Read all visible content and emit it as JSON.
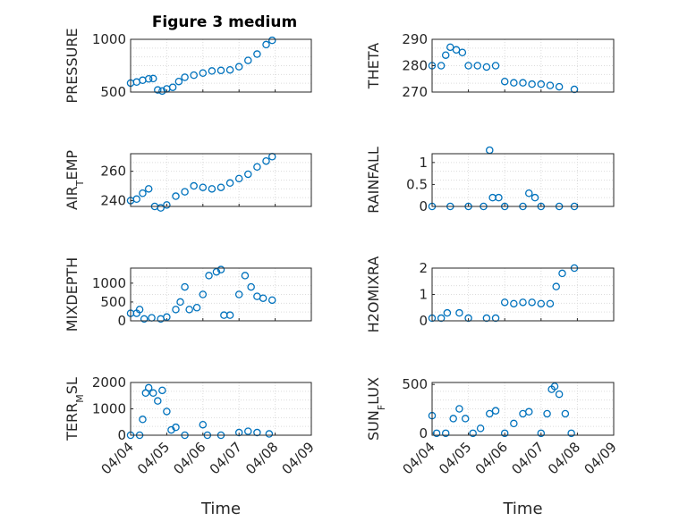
{
  "figure": {
    "title": "Figure 3 medium"
  },
  "chart_data": [
    {
      "type": "scatter",
      "ylabel": "PRESSURE",
      "title": "Figure 3 medium",
      "ylim": [
        500,
        1000
      ],
      "yticks": [
        500,
        1000
      ],
      "xlabel": "",
      "x_ticklabels": [],
      "points": [
        [
          "04/04 00:00",
          585
        ],
        [
          "04/04 04:00",
          595
        ],
        [
          "04/04 08:00",
          612
        ],
        [
          "04/04 12:00",
          625
        ],
        [
          "04/04 15:00",
          628
        ],
        [
          "04/04 18:00",
          520
        ],
        [
          "04/04 21:00",
          510
        ],
        [
          "04/05 00:00",
          530
        ],
        [
          "04/05 04:00",
          545
        ],
        [
          "04/05 08:00",
          600
        ],
        [
          "04/05 12:00",
          640
        ],
        [
          "04/05 18:00",
          660
        ],
        [
          "04/06 00:00",
          680
        ],
        [
          "04/06 06:00",
          700
        ],
        [
          "04/06 12:00",
          705
        ],
        [
          "04/06 18:00",
          710
        ],
        [
          "04/07 00:00",
          740
        ],
        [
          "04/07 06:00",
          800
        ],
        [
          "04/07 12:00",
          860
        ],
        [
          "04/07 18:00",
          950
        ],
        [
          "04/07 22:00",
          990
        ]
      ]
    },
    {
      "type": "scatter",
      "ylabel": "THETA",
      "ylim": [
        270,
        290
      ],
      "yticks": [
        270,
        280,
        290
      ],
      "xlabel": "",
      "x_ticklabels": [],
      "points": [
        [
          "04/04 00:00",
          280
        ],
        [
          "04/04 06:00",
          280
        ],
        [
          "04/04 09:00",
          284
        ],
        [
          "04/04 12:00",
          287
        ],
        [
          "04/04 16:00",
          286
        ],
        [
          "04/04 20:00",
          285
        ],
        [
          "04/05 00:00",
          280
        ],
        [
          "04/05 06:00",
          280
        ],
        [
          "04/05 12:00",
          279.5
        ],
        [
          "04/05 18:00",
          280
        ],
        [
          "04/06 00:00",
          274
        ],
        [
          "04/06 06:00",
          273.5
        ],
        [
          "04/06 12:00",
          273.5
        ],
        [
          "04/06 18:00",
          273
        ],
        [
          "04/07 00:00",
          273
        ],
        [
          "04/07 06:00",
          272.5
        ],
        [
          "04/07 12:00",
          272
        ],
        [
          "04/07 22:00",
          271
        ]
      ]
    },
    {
      "type": "scatter",
      "ylabel_main": "AIR",
      "ylabel_sub": "T",
      "ylabel_rest": "EMP",
      "ylim": [
        236,
        272
      ],
      "yticks": [
        240,
        260
      ],
      "xlabel": "",
      "x_ticklabels": [],
      "points": [
        [
          "04/04 00:00",
          240
        ],
        [
          "04/04 04:00",
          241
        ],
        [
          "04/04 08:00",
          245
        ],
        [
          "04/04 12:00",
          248
        ],
        [
          "04/04 16:00",
          236
        ],
        [
          "04/04 20:00",
          235
        ],
        [
          "04/05 00:00",
          237
        ],
        [
          "04/05 06:00",
          243
        ],
        [
          "04/05 12:00",
          246
        ],
        [
          "04/05 18:00",
          250
        ],
        [
          "04/06 00:00",
          249
        ],
        [
          "04/06 06:00",
          248
        ],
        [
          "04/06 12:00",
          249
        ],
        [
          "04/06 18:00",
          252
        ],
        [
          "04/07 00:00",
          255
        ],
        [
          "04/07 06:00",
          258
        ],
        [
          "04/07 12:00",
          263
        ],
        [
          "04/07 18:00",
          267
        ],
        [
          "04/07 22:00",
          270
        ]
      ]
    },
    {
      "type": "scatter",
      "ylabel": "RAINFALL",
      "ylim": [
        0,
        1.2
      ],
      "yticks": [
        0,
        0.5,
        1
      ],
      "xlabel": "",
      "x_ticklabels": [],
      "points": [
        [
          "04/04 00:00",
          0
        ],
        [
          "04/04 12:00",
          0
        ],
        [
          "04/05 00:00",
          0
        ],
        [
          "04/05 10:00",
          0
        ],
        [
          "04/05 14:00",
          1.28
        ],
        [
          "04/05 16:00",
          0.2
        ],
        [
          "04/05 20:00",
          0.2
        ],
        [
          "04/06 00:00",
          0
        ],
        [
          "04/06 12:00",
          0
        ],
        [
          "04/06 16:00",
          0.3
        ],
        [
          "04/06 20:00",
          0.2
        ],
        [
          "04/07 00:00",
          0
        ],
        [
          "04/07 12:00",
          0
        ],
        [
          "04/07 22:00",
          0
        ]
      ]
    },
    {
      "type": "scatter",
      "ylabel": "MIXDEPTH",
      "ylim": [
        0,
        1400
      ],
      "yticks": [
        0,
        500,
        1000
      ],
      "xlabel": "",
      "x_ticklabels": [],
      "points": [
        [
          "04/04 00:00",
          200
        ],
        [
          "04/04 04:00",
          200
        ],
        [
          "04/04 06:00",
          300
        ],
        [
          "04/04 09:00",
          50
        ],
        [
          "04/04 14:00",
          80
        ],
        [
          "04/04 20:00",
          50
        ],
        [
          "04/05 00:00",
          100
        ],
        [
          "04/05 06:00",
          300
        ],
        [
          "04/05 09:00",
          500
        ],
        [
          "04/05 12:00",
          900
        ],
        [
          "04/05 15:00",
          300
        ],
        [
          "04/05 20:00",
          350
        ],
        [
          "04/06 00:00",
          700
        ],
        [
          "04/06 04:00",
          1200
        ],
        [
          "04/06 09:00",
          1300
        ],
        [
          "04/06 12:00",
          1360
        ],
        [
          "04/06 14:00",
          150
        ],
        [
          "04/06 18:00",
          150
        ],
        [
          "04/07 00:00",
          700
        ],
        [
          "04/07 04:00",
          1200
        ],
        [
          "04/07 08:00",
          900
        ],
        [
          "04/07 12:00",
          650
        ],
        [
          "04/07 16:00",
          600
        ],
        [
          "04/07 22:00",
          550
        ]
      ]
    },
    {
      "type": "scatter",
      "ylabel": "H2OMIXRA",
      "ylim": [
        0,
        2
      ],
      "yticks": [
        0,
        1,
        2
      ],
      "xlabel": "",
      "x_ticklabels": [],
      "points": [
        [
          "04/04 00:00",
          0.1
        ],
        [
          "04/04 06:00",
          0.1
        ],
        [
          "04/04 10:00",
          0.3
        ],
        [
          "04/04 18:00",
          0.3
        ],
        [
          "04/05 00:00",
          0.1
        ],
        [
          "04/05 12:00",
          0.1
        ],
        [
          "04/05 18:00",
          0.1
        ],
        [
          "04/06 00:00",
          0.7
        ],
        [
          "04/06 06:00",
          0.65
        ],
        [
          "04/06 12:00",
          0.7
        ],
        [
          "04/06 18:00",
          0.7
        ],
        [
          "04/07 00:00",
          0.65
        ],
        [
          "04/07 06:00",
          0.65
        ],
        [
          "04/07 10:00",
          1.3
        ],
        [
          "04/07 14:00",
          1.8
        ],
        [
          "04/07 22:00",
          2.0
        ]
      ]
    },
    {
      "type": "scatter",
      "ylabel_main": "TERR",
      "ylabel_sub": "M",
      "ylabel_rest": "SL",
      "ylim": [
        0,
        2000
      ],
      "yticks": [
        0,
        1000,
        2000
      ],
      "xlabel": "Time",
      "x_ticklabels": [
        "04/04",
        "04/05",
        "04/06",
        "04/07",
        "04/08",
        "04/09"
      ],
      "points": [
        [
          "04/04 00:00",
          0
        ],
        [
          "04/04 06:00",
          0
        ],
        [
          "04/04 08:00",
          600
        ],
        [
          "04/04 10:00",
          1600
        ],
        [
          "04/04 12:00",
          1800
        ],
        [
          "04/04 15:00",
          1600
        ],
        [
          "04/04 18:00",
          1300
        ],
        [
          "04/04 21:00",
          1700
        ],
        [
          "04/05 00:00",
          900
        ],
        [
          "04/05 03:00",
          200
        ],
        [
          "04/05 06:00",
          300
        ],
        [
          "04/05 12:00",
          0
        ],
        [
          "04/06 00:00",
          400
        ],
        [
          "04/06 03:00",
          0
        ],
        [
          "04/06 12:00",
          0
        ],
        [
          "04/07 00:00",
          100
        ],
        [
          "04/07 06:00",
          150
        ],
        [
          "04/07 12:00",
          100
        ],
        [
          "04/07 20:00",
          50
        ]
      ]
    },
    {
      "type": "scatter",
      "ylabel_main": "SUN",
      "ylabel_sub": "F",
      "ylabel_rest": "LUX",
      "ylim": [
        -20,
        520
      ],
      "yticks": [
        0,
        500
      ],
      "xlabel": "Time",
      "x_ticklabels": [
        "04/04",
        "04/05",
        "04/06",
        "04/07",
        "04/08",
        "04/09"
      ],
      "points": [
        [
          "04/04 00:00",
          180
        ],
        [
          "04/04 03:00",
          0
        ],
        [
          "04/04 09:00",
          0
        ],
        [
          "04/04 14:00",
          150
        ],
        [
          "04/04 18:00",
          250
        ],
        [
          "04/04 22:00",
          150
        ],
        [
          "04/05 03:00",
          0
        ],
        [
          "04/05 08:00",
          50
        ],
        [
          "04/05 14:00",
          200
        ],
        [
          "04/05 18:00",
          230
        ],
        [
          "04/06 00:00",
          0
        ],
        [
          "04/06 06:00",
          100
        ],
        [
          "04/06 12:00",
          200
        ],
        [
          "04/06 16:00",
          220
        ],
        [
          "04/07 00:00",
          0
        ],
        [
          "04/07 04:00",
          200
        ],
        [
          "04/07 07:00",
          450
        ],
        [
          "04/07 09:00",
          480
        ],
        [
          "04/07 12:00",
          400
        ],
        [
          "04/07 16:00",
          200
        ],
        [
          "04/07 20:00",
          0
        ]
      ]
    }
  ],
  "colors": {
    "marker": "#0072bd",
    "axis": "#262626",
    "grid": "#dcdcdc"
  }
}
